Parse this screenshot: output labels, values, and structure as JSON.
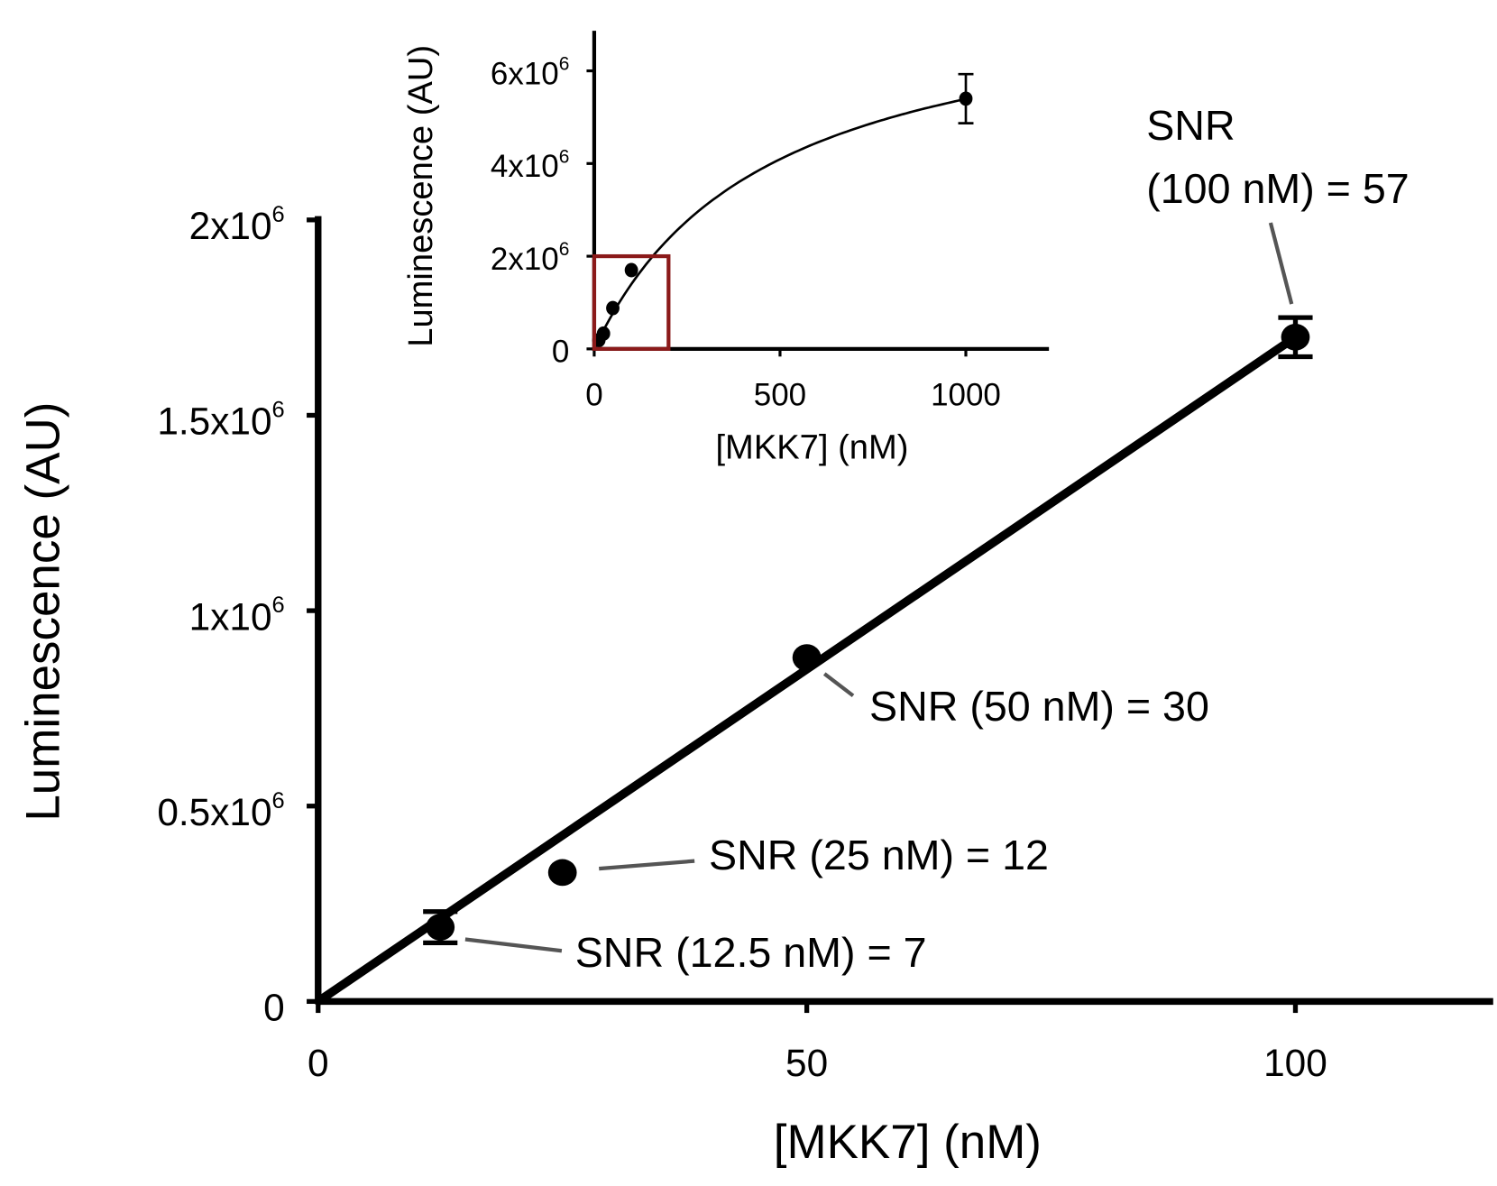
{
  "chart_data": [
    {
      "type": "scatter",
      "xlabel": "[MKK7] (nM)",
      "ylabel": "Luminescence (AU)",
      "xlim": [
        0,
        120
      ],
      "ylim": [
        0,
        2000000
      ],
      "x_ticks": [
        {
          "value": 0,
          "label": "0"
        },
        {
          "value": 50,
          "label": "50"
        },
        {
          "value": 100,
          "label": "100"
        }
      ],
      "y_ticks": [
        {
          "value": 0,
          "base": "0",
          "exp": ""
        },
        {
          "value": 500000,
          "base": "0.5x10",
          "exp": "6"
        },
        {
          "value": 1000000,
          "base": "1x10",
          "exp": "6"
        },
        {
          "value": 1500000,
          "base": "1.5x10",
          "exp": "6"
        },
        {
          "value": 2000000,
          "base": "2x10",
          "exp": "6"
        }
      ],
      "grid": false,
      "points": [
        {
          "x": 12.5,
          "y": 190000,
          "err": 40000
        },
        {
          "x": 25,
          "y": 330000,
          "err": 0
        },
        {
          "x": 50,
          "y": 880000,
          "err": 0
        },
        {
          "x": 100,
          "y": 1700000,
          "err": 50000
        }
      ],
      "fit_line": {
        "x": [
          0,
          100
        ],
        "y": [
          0,
          1700000
        ]
      },
      "annotations": [
        {
          "lines": [
            "SNR",
            "(100 nM) = 57"
          ]
        },
        {
          "lines": [
            "SNR (50 nM) = 30"
          ]
        },
        {
          "lines": [
            "SNR (25 nM) = 12"
          ]
        },
        {
          "lines": [
            "SNR (12.5 nM) = 7"
          ]
        }
      ],
      "colors": {
        "data": "#000000",
        "leader": "#555555"
      }
    },
    {
      "type": "scatter",
      "role": "inset",
      "xlabel": "[MKK7] (nM)",
      "ylabel": "Luminescence (AU)",
      "xlim": [
        0,
        1200
      ],
      "ylim": [
        0,
        6800000
      ],
      "x_ticks": [
        {
          "value": 0,
          "label": "0"
        },
        {
          "value": 500,
          "label": "500"
        },
        {
          "value": 1000,
          "label": "1000"
        }
      ],
      "y_ticks": [
        {
          "value": 0,
          "base": "0",
          "exp": ""
        },
        {
          "value": 2000000,
          "base": "2x10",
          "exp": "6"
        },
        {
          "value": 4000000,
          "base": "4x10",
          "exp": "6"
        },
        {
          "value": 6000000,
          "base": "6x10",
          "exp": "6"
        }
      ],
      "grid": false,
      "points": [
        {
          "x": 12.5,
          "y": 190000,
          "err": 0
        },
        {
          "x": 25,
          "y": 330000,
          "err": 0
        },
        {
          "x": 50,
          "y": 880000,
          "err": 0
        },
        {
          "x": 100,
          "y": 1700000,
          "err": 0
        },
        {
          "x": 1000,
          "y": 5400000,
          "err": 530000
        }
      ],
      "fit": "saturating curve",
      "highlight_box": {
        "x": [
          0,
          200
        ],
        "y": [
          0,
          2000000
        ],
        "color": "#8b1a1a"
      }
    }
  ]
}
